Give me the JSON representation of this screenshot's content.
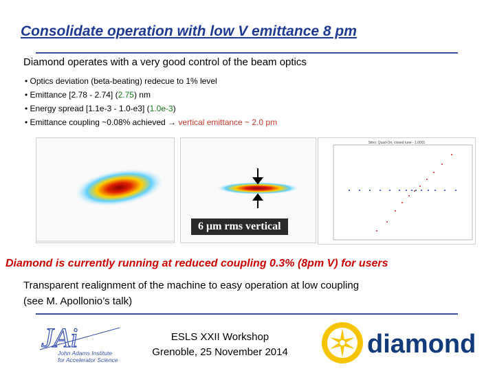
{
  "title": "Consolidate operation with low V emittance 8 pm",
  "subtitle": "Diamond operates with a very good control of the beam optics",
  "bullets": [
    {
      "pre": "• Optics deviation (beta-beating) redecue to 1% level",
      "hl": "",
      "post": ""
    },
    {
      "pre": "• Emittance [2.78 - 2.74] (",
      "hl": "2.75",
      "post": ") nm"
    },
    {
      "pre": "• Energy spread [1.1e-3 - 1.0-e3] (",
      "hl": "1.0e-3",
      "post": ")"
    },
    {
      "pre": "• Emittance coupling ~0.08% achieved → ",
      "hl": "vertical emittance ~ 2.0 pm",
      "post": ""
    }
  ],
  "image_label": "6 μm rms vertical",
  "plot_right_title": "Sites: Quad-On, closed tune - 1.0001",
  "diamond_line": "Diamond is currently running at reduced coupling 0.3% (8pm V) for users",
  "transparent_line1": "Transparent realignment of the machine to easy operation at low coupling",
  "transparent_line2": "(see M. Apollonio’s talk)",
  "workshop_line1": "ESLS XXII Workshop",
  "workshop_line2": "Grenoble, 25 November 2014",
  "jai_logo_text": {
    "mark": "JAi",
    "line1": "John Adams Institute",
    "line2": "for Accelerator Science"
  },
  "diamond_logo_text": "diamond",
  "colors": {
    "title": "#1f3a93",
    "green": "#1a7a1a",
    "red": "#c0392b",
    "alert": "#cc0000"
  }
}
